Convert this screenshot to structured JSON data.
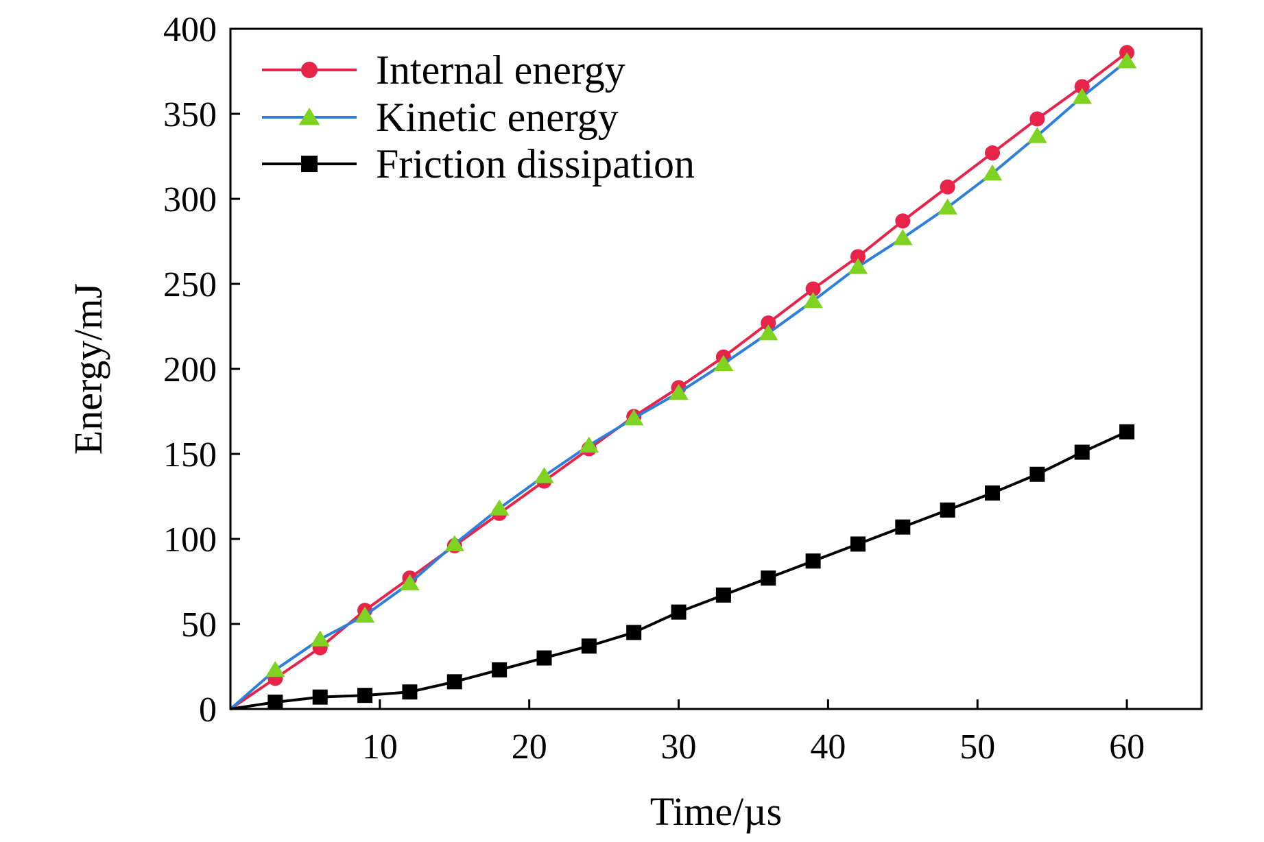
{
  "chart_data": {
    "type": "line",
    "title": "",
    "xlabel": "Time/µs",
    "ylabel": "Energy/mJ",
    "xlim": [
      0,
      65
    ],
    "ylim": [
      0,
      400
    ],
    "xticks": [
      10,
      20,
      30,
      40,
      50,
      60
    ],
    "yticks": [
      0,
      50,
      100,
      150,
      200,
      250,
      300,
      350,
      400
    ],
    "grid": false,
    "legend_position": "top-left",
    "x": [
      0,
      3,
      6,
      9,
      12,
      15,
      18,
      21,
      24,
      27,
      30,
      33,
      36,
      39,
      42,
      45,
      48,
      51,
      54,
      57,
      60
    ],
    "series": [
      {
        "name": "Internal energy",
        "color": "#e8234a",
        "marker": "circle",
        "marker_color": "#e8234a",
        "values": [
          0,
          18,
          36,
          58,
          77,
          96,
          115,
          134,
          153,
          172,
          189,
          207,
          227,
          247,
          266,
          287,
          307,
          327,
          347,
          366,
          386
        ]
      },
      {
        "name": "Kinetic energy",
        "color": "#2d7fdb",
        "marker": "triangle",
        "marker_color": "#7ed321",
        "values": [
          0,
          23,
          41,
          55,
          74,
          97,
          118,
          137,
          155,
          171,
          186,
          203,
          221,
          240,
          260,
          277,
          295,
          315,
          337,
          360,
          381
        ]
      },
      {
        "name": "Friction dissipation",
        "color": "#000000",
        "marker": "square",
        "marker_color": "#000000",
        "values": [
          0,
          4,
          7,
          8,
          10,
          16,
          23,
          30,
          37,
          45,
          57,
          67,
          77,
          87,
          97,
          107,
          117,
          127,
          138,
          151,
          163
        ]
      }
    ]
  }
}
